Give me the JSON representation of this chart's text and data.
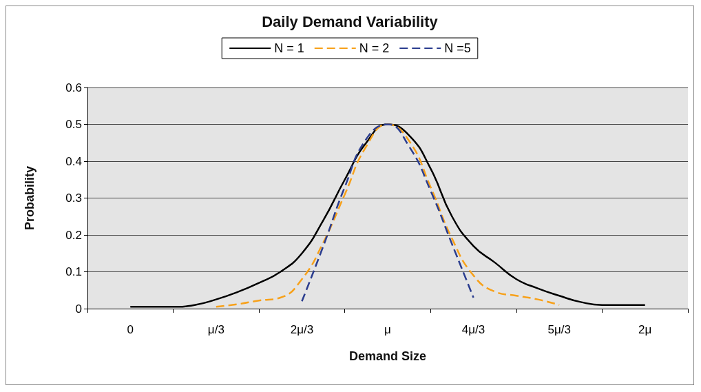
{
  "chart_data": {
    "type": "line",
    "title": "Daily Demand Variability",
    "xlabel": "Demand Size",
    "ylabel": "Probability",
    "categories": [
      null,
      null,
      "0",
      null,
      null,
      null,
      "μ/3",
      null,
      null,
      null,
      "2μ/3",
      null,
      null,
      null,
      "μ",
      null,
      null,
      null,
      "4μ/3",
      null,
      null,
      null,
      "5μ/3",
      null,
      null,
      null,
      "2μ",
      null,
      null
    ],
    "ylim": [
      0,
      0.6
    ],
    "yticks": [
      0,
      0.1,
      0.2,
      0.3,
      0.4,
      0.5,
      0.6
    ],
    "grid": "y",
    "legend": "top",
    "marker": "none",
    "series": [
      {
        "name": "N = 1",
        "color": "#000000",
        "line_style": "solid",
        "values": [
          null,
          null,
          0.005,
          0.005,
          0.005,
          0.01,
          0.025,
          0.045,
          0.07,
          0.1,
          0.15,
          0.24,
          0.35,
          0.45,
          0.5,
          0.47,
          0.38,
          0.25,
          0.17,
          0.125,
          0.08,
          0.055,
          0.035,
          0.018,
          0.01,
          0.01,
          0.01,
          null,
          null
        ]
      },
      {
        "name": "N = 2",
        "color": "#f7a11a",
        "line_style": "dashed",
        "values": [
          null,
          null,
          null,
          null,
          null,
          null,
          0.005,
          0.012,
          0.022,
          0.03,
          0.08,
          0.18,
          0.31,
          0.44,
          0.5,
          0.455,
          0.33,
          0.19,
          0.09,
          0.046,
          0.035,
          0.025,
          0.01,
          null,
          null,
          null,
          null,
          null,
          null
        ]
      },
      {
        "name": "N =5",
        "color": "#2b3d8f",
        "line_style": "dashed",
        "values": [
          null,
          null,
          null,
          null,
          null,
          null,
          null,
          null,
          null,
          null,
          0.02,
          0.17,
          0.33,
          0.46,
          0.5,
          0.44,
          0.32,
          0.175,
          0.03,
          null,
          null,
          null,
          null,
          null,
          null,
          null,
          null,
          null,
          null
        ]
      }
    ]
  }
}
